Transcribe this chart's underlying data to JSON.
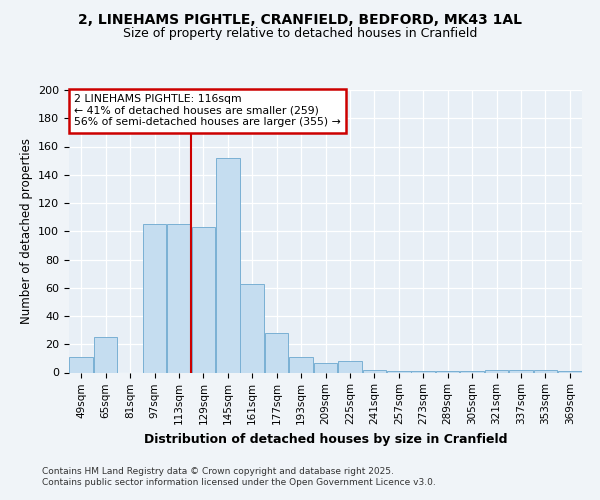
{
  "title": "2, LINEHAMS PIGHTLE, CRANFIELD, BEDFORD, MK43 1AL",
  "subtitle": "Size of property relative to detached houses in Cranfield",
  "xlabel": "Distribution of detached houses by size in Cranfield",
  "ylabel": "Number of detached properties",
  "categories": [
    "49sqm",
    "65sqm",
    "81sqm",
    "97sqm",
    "113sqm",
    "129sqm",
    "145sqm",
    "161sqm",
    "177sqm",
    "193sqm",
    "209sqm",
    "225sqm",
    "241sqm",
    "257sqm",
    "273sqm",
    "289sqm",
    "305sqm",
    "321sqm",
    "337sqm",
    "353sqm",
    "369sqm"
  ],
  "values": [
    11,
    25,
    0,
    105,
    105,
    103,
    152,
    63,
    28,
    11,
    7,
    8,
    2,
    1,
    1,
    1,
    1,
    2,
    2,
    2,
    1
  ],
  "bar_color": "#c5ddf0",
  "bar_edge_color": "#7ab0d4",
  "annotation_text": "2 LINEHAMS PIGHTLE: 116sqm\n← 41% of detached houses are smaller (259)\n56% of semi-detached houses are larger (355) →",
  "annotation_box_color": "#ffffff",
  "annotation_box_edge": "#cc0000",
  "footer": "Contains HM Land Registry data © Crown copyright and database right 2025.\nContains public sector information licensed under the Open Government Licence v3.0.",
  "ylim": [
    0,
    200
  ],
  "yticks": [
    0,
    20,
    40,
    60,
    80,
    100,
    120,
    140,
    160,
    180,
    200
  ],
  "bg_color": "#f0f4f8",
  "plot_bg_color": "#e8eff6",
  "red_line_idx": 4.5
}
